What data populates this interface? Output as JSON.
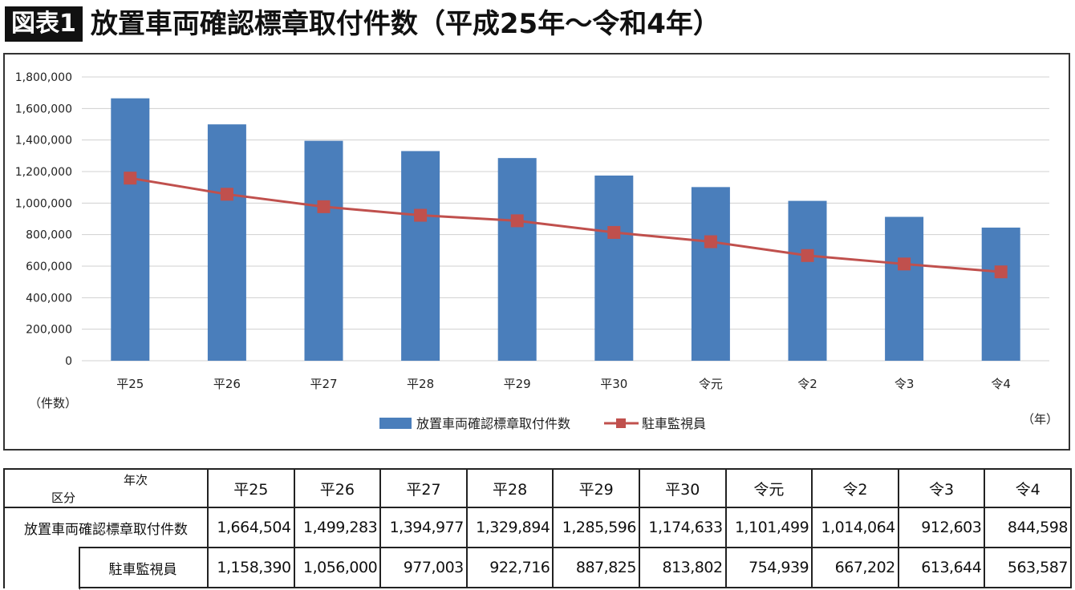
{
  "header": {
    "figure_label": "図表1",
    "title": "放置車両確認標章取付件数（平成25年〜令和4年）"
  },
  "chart_data": {
    "type": "bar",
    "categories": [
      "平25",
      "平26",
      "平27",
      "平28",
      "平29",
      "平30",
      "令元",
      "令2",
      "令3",
      "令4"
    ],
    "series": [
      {
        "name": "放置車両確認標章取付件数",
        "type": "bar",
        "color": "#4a7ebb",
        "values": [
          1664504,
          1499283,
          1394977,
          1329894,
          1285596,
          1174633,
          1101499,
          1014064,
          912603,
          844598
        ]
      },
      {
        "name": "駐車監視員",
        "type": "line",
        "color": "#c0504d",
        "values": [
          1158390,
          1056000,
          977003,
          922716,
          887825,
          813802,
          754939,
          667202,
          613644,
          563587
        ]
      }
    ],
    "ylim": [
      0,
      1800000
    ],
    "yticks": [
      "0",
      "200,000",
      "400,000",
      "600,000",
      "800,000",
      "1,000,000",
      "1,200,000",
      "1,400,000",
      "1,600,000",
      "1,800,000"
    ],
    "ylabel": "（件数）",
    "xlabel": "（年）",
    "grid": true,
    "legend_position": "bottom"
  },
  "table": {
    "corner_top": "年次",
    "corner_bottom": "区分",
    "columns": [
      "平25",
      "平26",
      "平27",
      "平28",
      "平29",
      "平30",
      "令元",
      "令2",
      "令3",
      "令4"
    ],
    "rows": [
      {
        "label": "放置車両確認標章取付件数",
        "values": [
          "1,664,504",
          "1,499,283",
          "1,394,977",
          "1,329,894",
          "1,285,596",
          "1,174,633",
          "1,101,499",
          "1,014,064",
          "912,603",
          "844,598"
        ]
      },
      {
        "label": "駐車監視員",
        "values": [
          "1,158,390",
          "1,056,000",
          "977,003",
          "922,716",
          "887,825",
          "813,802",
          "754,939",
          "667,202",
          "613,644",
          "563,587"
        ]
      }
    ]
  }
}
